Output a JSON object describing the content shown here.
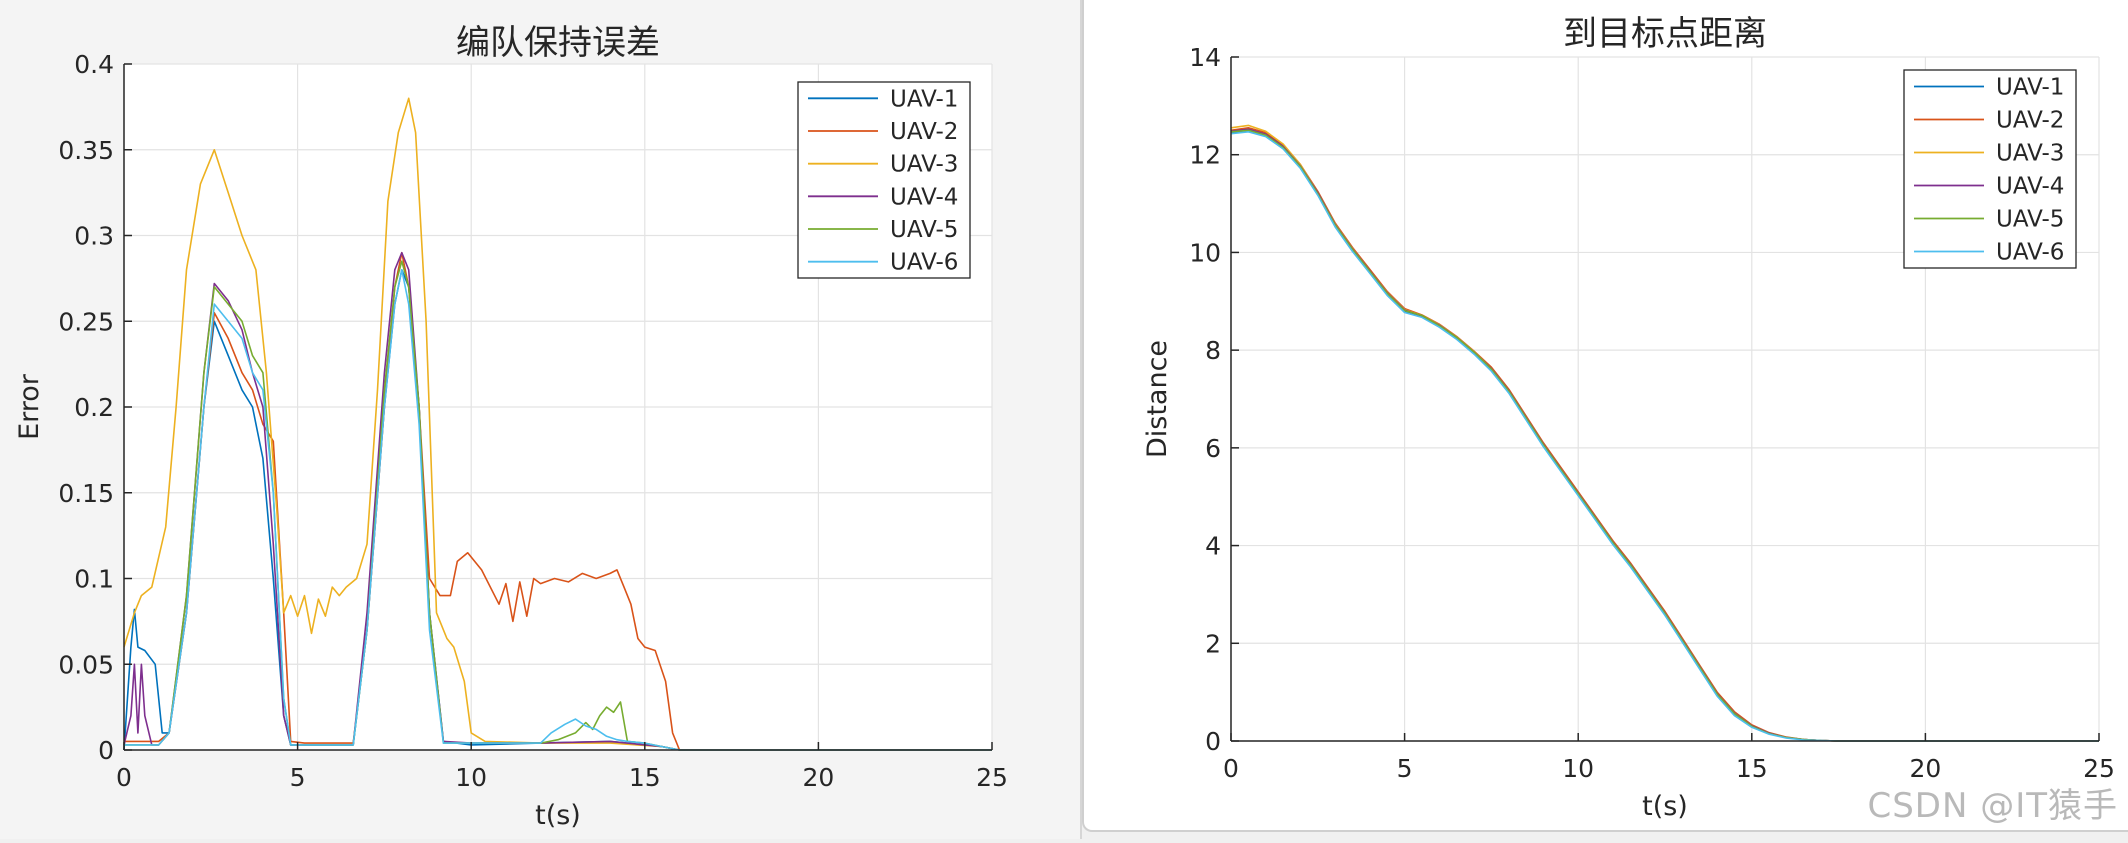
{
  "watermark": "CSDN @IT猿手",
  "colors": [
    "#0072BD",
    "#D95319",
    "#EDB120",
    "#7E2F8E",
    "#77AC30",
    "#4DBEEE"
  ],
  "chart_data": [
    {
      "type": "line",
      "title": "编队保持误差",
      "xlabel": "t(s)",
      "ylabel": "Error",
      "xlim": [
        0,
        25
      ],
      "ylim": [
        0,
        0.4
      ],
      "xticks": [
        0,
        5,
        10,
        15,
        20,
        25
      ],
      "yticks": [
        0,
        0.05,
        0.1,
        0.15,
        0.2,
        0.25,
        0.3,
        0.35,
        0.4
      ],
      "grid": true,
      "legend_position": "top-right",
      "series": [
        {
          "name": "UAV-1",
          "x": [
            0,
            0.2,
            0.3,
            0.4,
            0.6,
            0.9,
            1.1,
            1.3,
            1.8,
            2.3,
            2.6,
            3.0,
            3.4,
            3.7,
            4.0,
            4.3,
            4.6,
            4.8,
            5.2,
            6.0,
            6.6,
            7.0,
            7.5,
            7.8,
            8.0,
            8.2,
            8.5,
            8.8,
            9.2,
            10,
            12,
            14,
            15.5,
            16,
            25
          ],
          "y": [
            0,
            0.06,
            0.082,
            0.06,
            0.058,
            0.05,
            0.01,
            0.01,
            0.08,
            0.2,
            0.25,
            0.23,
            0.21,
            0.2,
            0.17,
            0.1,
            0.02,
            0.003,
            0.003,
            0.003,
            0.003,
            0.07,
            0.2,
            0.26,
            0.28,
            0.27,
            0.2,
            0.08,
            0.005,
            0.003,
            0.004,
            0.005,
            0.002,
            0,
            0
          ]
        },
        {
          "name": "UAV-2",
          "x": [
            0,
            0.5,
            1.0,
            1.3,
            1.8,
            2.3,
            2.6,
            3.0,
            3.4,
            3.7,
            4.0,
            4.3,
            4.6,
            4.8,
            5.2,
            6.0,
            6.6,
            7.0,
            7.5,
            7.8,
            8.0,
            8.2,
            8.5,
            8.8,
            9.1,
            9.4,
            9.6,
            9.9,
            10.3,
            10.8,
            11.0,
            11.2,
            11.4,
            11.6,
            11.8,
            12.0,
            12.4,
            12.8,
            13.2,
            13.6,
            14.0,
            14.2,
            14.4,
            14.6,
            14.8,
            15.0,
            15.3,
            15.6,
            15.8,
            16,
            25
          ],
          "y": [
            0.005,
            0.005,
            0.005,
            0.01,
            0.08,
            0.2,
            0.255,
            0.24,
            0.22,
            0.21,
            0.19,
            0.18,
            0.08,
            0.005,
            0.004,
            0.004,
            0.004,
            0.07,
            0.2,
            0.27,
            0.29,
            0.27,
            0.2,
            0.1,
            0.09,
            0.09,
            0.11,
            0.115,
            0.105,
            0.085,
            0.097,
            0.075,
            0.098,
            0.078,
            0.1,
            0.097,
            0.1,
            0.098,
            0.103,
            0.1,
            0.103,
            0.105,
            0.095,
            0.085,
            0.065,
            0.06,
            0.058,
            0.04,
            0.01,
            0,
            0
          ]
        },
        {
          "name": "UAV-3",
          "x": [
            0,
            0.3,
            0.5,
            0.8,
            1.2,
            1.5,
            1.8,
            2.2,
            2.6,
            3.0,
            3.4,
            3.8,
            4.1,
            4.4,
            4.6,
            4.8,
            5.0,
            5.2,
            5.4,
            5.6,
            5.8,
            6.0,
            6.2,
            6.4,
            6.7,
            7.0,
            7.3,
            7.6,
            7.9,
            8.2,
            8.4,
            8.7,
            9.0,
            9.3,
            9.5,
            9.8,
            10.0,
            10.4,
            12,
            14,
            15.5,
            16,
            25
          ],
          "y": [
            0.06,
            0.08,
            0.09,
            0.095,
            0.13,
            0.2,
            0.28,
            0.33,
            0.35,
            0.325,
            0.3,
            0.28,
            0.22,
            0.14,
            0.08,
            0.09,
            0.078,
            0.09,
            0.068,
            0.088,
            0.078,
            0.095,
            0.09,
            0.095,
            0.1,
            0.12,
            0.21,
            0.32,
            0.36,
            0.38,
            0.36,
            0.25,
            0.08,
            0.065,
            0.06,
            0.04,
            0.01,
            0.005,
            0.004,
            0.004,
            0.002,
            0,
            0
          ]
        },
        {
          "name": "UAV-4",
          "x": [
            0,
            0.2,
            0.3,
            0.4,
            0.5,
            0.6,
            0.8,
            1.0,
            1.3,
            1.8,
            2.3,
            2.6,
            3.0,
            3.4,
            3.7,
            4.0,
            4.3,
            4.6,
            4.8,
            5.2,
            6.0,
            6.6,
            7.0,
            7.5,
            7.8,
            8.0,
            8.2,
            8.5,
            8.8,
            9.2,
            10,
            12,
            14,
            15.5,
            16,
            25
          ],
          "y": [
            0.003,
            0.02,
            0.05,
            0.01,
            0.05,
            0.02,
            0.003,
            0.003,
            0.01,
            0.09,
            0.22,
            0.272,
            0.262,
            0.245,
            0.22,
            0.2,
            0.12,
            0.02,
            0.003,
            0.003,
            0.003,
            0.003,
            0.08,
            0.22,
            0.28,
            0.29,
            0.28,
            0.2,
            0.08,
            0.005,
            0.004,
            0.004,
            0.005,
            0.002,
            0,
            0
          ]
        },
        {
          "name": "UAV-5",
          "x": [
            0,
            0.5,
            1.0,
            1.3,
            1.8,
            2.3,
            2.6,
            3.0,
            3.4,
            3.7,
            4.0,
            4.3,
            4.6,
            4.8,
            5.2,
            6.0,
            6.6,
            7.0,
            7.5,
            7.8,
            8.0,
            8.2,
            8.5,
            8.8,
            9.2,
            10,
            12.0,
            12.5,
            13.0,
            13.3,
            13.5,
            13.7,
            13.9,
            14.1,
            14.3,
            14.5,
            15.0,
            15.5,
            16,
            25
          ],
          "y": [
            0.003,
            0.003,
            0.003,
            0.01,
            0.09,
            0.22,
            0.27,
            0.26,
            0.25,
            0.23,
            0.22,
            0.15,
            0.03,
            0.003,
            0.003,
            0.003,
            0.003,
            0.07,
            0.21,
            0.27,
            0.285,
            0.27,
            0.2,
            0.08,
            0.004,
            0.004,
            0.004,
            0.006,
            0.01,
            0.016,
            0.012,
            0.02,
            0.025,
            0.022,
            0.028,
            0.005,
            0.004,
            0.002,
            0,
            0
          ]
        },
        {
          "name": "UAV-6",
          "x": [
            0,
            0.5,
            1.0,
            1.3,
            1.8,
            2.3,
            2.6,
            3.0,
            3.4,
            3.7,
            4.0,
            4.3,
            4.6,
            4.8,
            5.2,
            6.0,
            6.6,
            7.0,
            7.5,
            7.8,
            8.0,
            8.2,
            8.5,
            8.8,
            9.2,
            10,
            12.0,
            12.3,
            12.7,
            13.0,
            13.3,
            13.6,
            13.9,
            14.2,
            14.5,
            15.0,
            15.5,
            16,
            25
          ],
          "y": [
            0.003,
            0.003,
            0.003,
            0.01,
            0.08,
            0.2,
            0.26,
            0.25,
            0.24,
            0.22,
            0.21,
            0.15,
            0.03,
            0.003,
            0.003,
            0.003,
            0.003,
            0.07,
            0.2,
            0.26,
            0.28,
            0.26,
            0.19,
            0.07,
            0.004,
            0.004,
            0.004,
            0.01,
            0.015,
            0.018,
            0.014,
            0.012,
            0.008,
            0.006,
            0.005,
            0.004,
            0.002,
            0,
            0
          ]
        }
      ]
    },
    {
      "type": "line",
      "title": "到目标点距离",
      "xlabel": "t(s)",
      "ylabel": "Distance",
      "xlim": [
        0,
        25
      ],
      "ylim": [
        0,
        14
      ],
      "xticks": [
        0,
        5,
        10,
        15,
        20,
        25
      ],
      "yticks": [
        0,
        2,
        4,
        6,
        8,
        10,
        12,
        14
      ],
      "grid": true,
      "legend_position": "top-right",
      "series": [
        {
          "name": "UAV-1",
          "x": [
            0,
            0.5,
            1.0,
            1.5,
            2.0,
            2.5,
            3.0,
            3.5,
            4.0,
            4.5,
            5.0,
            5.5,
            6.0,
            6.5,
            7.0,
            7.5,
            8.0,
            8.5,
            9.0,
            9.5,
            10.0,
            10.5,
            11.0,
            11.5,
            12.0,
            12.5,
            13.0,
            13.5,
            14.0,
            14.5,
            15.0,
            15.5,
            16.0,
            16.5,
            17.0,
            17.5,
            18.0,
            25
          ],
          "y": [
            12.45,
            12.5,
            12.4,
            12.15,
            11.75,
            11.2,
            10.55,
            10.05,
            9.6,
            9.15,
            8.8,
            8.7,
            8.5,
            8.25,
            7.95,
            7.6,
            7.15,
            6.6,
            6.05,
            5.55,
            5.05,
            4.55,
            4.05,
            3.6,
            3.1,
            2.6,
            2.05,
            1.5,
            0.95,
            0.55,
            0.3,
            0.15,
            0.07,
            0.03,
            0.01,
            0,
            0,
            0
          ]
        },
        {
          "name": "UAV-2",
          "x": [
            0,
            0.5,
            1.0,
            1.5,
            2.0,
            2.5,
            3.0,
            3.5,
            4.0,
            4.5,
            5.0,
            5.5,
            6.0,
            6.5,
            7.0,
            7.5,
            8.0,
            8.5,
            9.0,
            9.5,
            10.0,
            10.5,
            11.0,
            11.5,
            12.0,
            12.5,
            13.0,
            13.5,
            14.0,
            14.5,
            15.0,
            15.5,
            16.0,
            16.5,
            17.0,
            17.5,
            18.0,
            25
          ],
          "y": [
            12.5,
            12.55,
            12.45,
            12.2,
            11.8,
            11.25,
            10.6,
            10.1,
            9.65,
            9.2,
            8.85,
            8.72,
            8.53,
            8.28,
            7.98,
            7.65,
            7.2,
            6.65,
            6.1,
            5.6,
            5.1,
            4.6,
            4.1,
            3.65,
            3.15,
            2.65,
            2.1,
            1.55,
            1.0,
            0.6,
            0.33,
            0.17,
            0.08,
            0.03,
            0.01,
            0,
            0,
            0
          ]
        },
        {
          "name": "UAV-3",
          "x": [
            0,
            0.5,
            1.0,
            1.5,
            2.0,
            2.5,
            3.0,
            3.5,
            4.0,
            4.5,
            5.0,
            5.5,
            6.0,
            6.5,
            7.0,
            7.5,
            8.0,
            8.5,
            9.0,
            9.5,
            10.0,
            10.5,
            11.0,
            11.5,
            12.0,
            12.5,
            13.0,
            13.5,
            14.0,
            14.5,
            15.0,
            15.5,
            16.0,
            16.5,
            17.0,
            17.5,
            18.0,
            25
          ],
          "y": [
            12.55,
            12.6,
            12.48,
            12.22,
            11.8,
            11.22,
            10.58,
            10.08,
            9.62,
            9.18,
            8.83,
            8.71,
            8.52,
            8.27,
            7.97,
            7.62,
            7.17,
            6.62,
            6.07,
            5.57,
            5.07,
            4.57,
            4.07,
            3.62,
            3.12,
            2.62,
            2.07,
            1.52,
            0.97,
            0.57,
            0.31,
            0.16,
            0.07,
            0.03,
            0.01,
            0,
            0,
            0
          ]
        },
        {
          "name": "UAV-4",
          "x": [
            0,
            0.5,
            1.0,
            1.5,
            2.0,
            2.5,
            3.0,
            3.5,
            4.0,
            4.5,
            5.0,
            5.5,
            6.0,
            6.5,
            7.0,
            7.5,
            8.0,
            8.5,
            9.0,
            9.5,
            10.0,
            10.5,
            11.0,
            11.5,
            12.0,
            12.5,
            13.0,
            13.5,
            14.0,
            14.5,
            15.0,
            15.5,
            16.0,
            16.5,
            17.0,
            17.5,
            18.0,
            25
          ],
          "y": [
            12.48,
            12.52,
            12.42,
            12.17,
            11.77,
            11.22,
            10.57,
            10.07,
            9.62,
            9.17,
            8.82,
            8.7,
            8.51,
            8.26,
            7.96,
            7.62,
            7.17,
            6.62,
            6.07,
            5.57,
            5.07,
            4.57,
            4.07,
            3.62,
            3.12,
            2.62,
            2.07,
            1.52,
            0.97,
            0.57,
            0.31,
            0.16,
            0.07,
            0.03,
            0.01,
            0,
            0,
            0
          ]
        },
        {
          "name": "UAV-5",
          "x": [
            0,
            0.5,
            1.0,
            1.5,
            2.0,
            2.5,
            3.0,
            3.5,
            4.0,
            4.5,
            5.0,
            5.5,
            6.0,
            6.5,
            7.0,
            7.5,
            8.0,
            8.5,
            9.0,
            9.5,
            10.0,
            10.5,
            11.0,
            11.5,
            12.0,
            12.5,
            13.0,
            13.5,
            14.0,
            14.5,
            15.0,
            15.5,
            16.0,
            16.5,
            17.0,
            17.5,
            18.0,
            25
          ],
          "y": [
            12.47,
            12.5,
            12.4,
            12.15,
            11.76,
            11.2,
            10.56,
            10.06,
            9.61,
            9.16,
            8.81,
            8.71,
            8.5,
            8.26,
            7.96,
            7.61,
            7.16,
            6.61,
            6.06,
            5.56,
            5.06,
            4.56,
            4.06,
            3.61,
            3.11,
            2.61,
            2.06,
            1.51,
            0.96,
            0.56,
            0.3,
            0.15,
            0.07,
            0.03,
            0.01,
            0,
            0,
            0
          ]
        },
        {
          "name": "UAV-6",
          "x": [
            0,
            0.5,
            1.0,
            1.5,
            2.0,
            2.5,
            3.0,
            3.5,
            4.0,
            4.5,
            5.0,
            5.5,
            6.0,
            6.5,
            7.0,
            7.5,
            8.0,
            8.5,
            9.0,
            9.5,
            10.0,
            10.5,
            11.0,
            11.5,
            12.0,
            12.5,
            13.0,
            13.5,
            14.0,
            14.5,
            15.0,
            15.5,
            16.0,
            16.5,
            17.0,
            17.5,
            18.0,
            25
          ],
          "y": [
            12.43,
            12.47,
            12.37,
            12.12,
            11.72,
            11.17,
            10.52,
            10.02,
            9.57,
            9.12,
            8.77,
            8.67,
            8.47,
            8.22,
            7.92,
            7.57,
            7.12,
            6.57,
            6.02,
            5.52,
            5.02,
            4.52,
            4.02,
            3.57,
            3.07,
            2.57,
            2.02,
            1.47,
            0.92,
            0.52,
            0.28,
            0.14,
            0.06,
            0.02,
            0.01,
            0,
            0,
            0
          ]
        }
      ]
    }
  ]
}
